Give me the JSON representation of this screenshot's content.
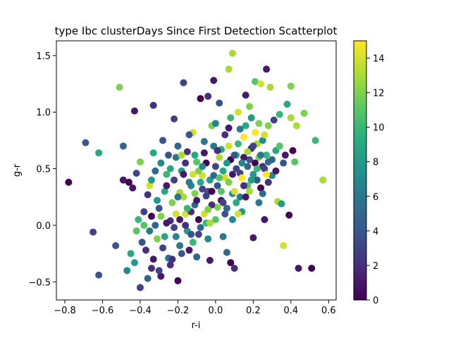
{
  "chart_data": {
    "type": "scatter",
    "title": "type Ibc clusterDays Since First Detection Scatterplot",
    "xlabel": "r-i",
    "ylabel": "g-r",
    "xlim": [
      -0.845,
      0.64
    ],
    "ylim": [
      -0.66,
      1.63
    ],
    "xticks": [
      -0.8,
      -0.6,
      -0.4,
      -0.2,
      0.0,
      0.2,
      0.4,
      0.6
    ],
    "xtick_labels": [
      "−0.8",
      "−0.6",
      "−0.4",
      "−0.2",
      "0.0",
      "0.2",
      "0.4",
      "0.6"
    ],
    "yticks": [
      -0.5,
      0.0,
      0.5,
      1.0,
      1.5
    ],
    "ytick_labels": [
      "−0.5",
      "0.0",
      "0.5",
      "1.0",
      "1.5"
    ],
    "grid": false,
    "colorbar": {
      "colormap": "viridis",
      "range": [
        0,
        15
      ],
      "ticks": [
        0,
        2,
        4,
        6,
        8,
        10,
        12,
        14
      ],
      "tick_labels": [
        "0",
        "2",
        "4",
        "6",
        "8",
        "10",
        "12",
        "14"
      ]
    },
    "points": [
      {
        "x": -0.78,
        "y": 0.38,
        "c": 0
      },
      {
        "x": -0.69,
        "y": 0.73,
        "c": 4
      },
      {
        "x": -0.65,
        "y": -0.06,
        "c": 3
      },
      {
        "x": -0.62,
        "y": 0.64,
        "c": 9
      },
      {
        "x": -0.62,
        "y": -0.44,
        "c": 4
      },
      {
        "x": -0.53,
        "y": -0.18,
        "c": 4
      },
      {
        "x": -0.51,
        "y": 1.22,
        "c": 12
      },
      {
        "x": -0.49,
        "y": 0.7,
        "c": 5
      },
      {
        "x": -0.49,
        "y": 0.4,
        "c": 1
      },
      {
        "x": -0.47,
        "y": -0.4,
        "c": 7
      },
      {
        "x": -0.46,
        "y": 0.38,
        "c": 0
      },
      {
        "x": -0.44,
        "y": 0.33,
        "c": 1
      },
      {
        "x": -0.43,
        "y": 1.01,
        "c": 1
      },
      {
        "x": -0.42,
        "y": 0.46,
        "c": 3
      },
      {
        "x": -0.4,
        "y": -0.55,
        "c": 3
      },
      {
        "x": -0.4,
        "y": 0.56,
        "c": 12
      },
      {
        "x": -0.38,
        "y": 0.12,
        "c": 3
      },
      {
        "x": -0.36,
        "y": -0.47,
        "c": 5
      },
      {
        "x": -0.35,
        "y": 0.35,
        "c": 14
      },
      {
        "x": -0.34,
        "y": -0.38,
        "c": 2
      },
      {
        "x": -0.33,
        "y": 1.06,
        "c": 2
      },
      {
        "x": -0.33,
        "y": 0.64,
        "c": 9
      },
      {
        "x": -0.31,
        "y": 0.22,
        "c": 8
      },
      {
        "x": -0.29,
        "y": -0.45,
        "c": 1
      },
      {
        "x": -0.28,
        "y": 0.75,
        "c": 4
      },
      {
        "x": -0.26,
        "y": 0.45,
        "c": 10
      },
      {
        "x": -0.25,
        "y": -0.29,
        "c": 6
      },
      {
        "x": -0.24,
        "y": 0.04,
        "c": 2
      },
      {
        "x": -0.22,
        "y": 0.94,
        "c": 3
      },
      {
        "x": -0.21,
        "y": 0.6,
        "c": 6
      },
      {
        "x": -0.2,
        "y": -0.49,
        "c": 0
      },
      {
        "x": -0.19,
        "y": 0.29,
        "c": 13
      },
      {
        "x": -0.18,
        "y": 0.48,
        "c": 8
      },
      {
        "x": -0.17,
        "y": 1.26,
        "c": 3
      },
      {
        "x": -0.16,
        "y": 0.1,
        "c": 14
      },
      {
        "x": -0.15,
        "y": 0.65,
        "c": 2
      },
      {
        "x": -0.14,
        "y": -0.22,
        "c": 1
      },
      {
        "x": -0.13,
        "y": 0.35,
        "c": 7
      },
      {
        "x": -0.12,
        "y": 0.82,
        "c": 14
      },
      {
        "x": -0.11,
        "y": 0.18,
        "c": 5
      },
      {
        "x": -0.1,
        "y": 0.56,
        "c": 11
      },
      {
        "x": -0.09,
        "y": -0.08,
        "c": 3
      },
      {
        "x": -0.08,
        "y": 1.12,
        "c": 0
      },
      {
        "x": -0.07,
        "y": 0.44,
        "c": 14
      },
      {
        "x": -0.06,
        "y": 0.74,
        "c": 6
      },
      {
        "x": -0.05,
        "y": 0.02,
        "c": 10
      },
      {
        "x": -0.04,
        "y": 1.14,
        "c": 2
      },
      {
        "x": -0.04,
        "y": 0.3,
        "c": 4
      },
      {
        "x": -0.03,
        "y": -0.31,
        "c": 1
      },
      {
        "x": -0.02,
        "y": 0.88,
        "c": 12
      },
      {
        "x": -0.01,
        "y": 1.28,
        "c": 1
      },
      {
        "x": 0.0,
        "y": 0.52,
        "c": 3
      },
      {
        "x": 0.01,
        "y": 0.16,
        "c": 12
      },
      {
        "x": 0.02,
        "y": 1.08,
        "c": 4
      },
      {
        "x": 0.03,
        "y": 0.67,
        "c": 9
      },
      {
        "x": 0.04,
        "y": -0.1,
        "c": 6
      },
      {
        "x": 0.05,
        "y": 0.42,
        "c": 14
      },
      {
        "x": 0.06,
        "y": -0.24,
        "c": 5
      },
      {
        "x": 0.07,
        "y": 1.38,
        "c": 13
      },
      {
        "x": 0.07,
        "y": 0.86,
        "c": 1
      },
      {
        "x": 0.08,
        "y": -0.33,
        "c": 0
      },
      {
        "x": 0.09,
        "y": 1.52,
        "c": 13
      },
      {
        "x": 0.09,
        "y": 0.28,
        "c": 7
      },
      {
        "x": 0.1,
        "y": -0.38,
        "c": 2
      },
      {
        "x": 0.11,
        "y": 0.62,
        "c": 10
      },
      {
        "x": 0.12,
        "y": 1.0,
        "c": 14
      },
      {
        "x": 0.13,
        "y": 0.46,
        "c": 3
      },
      {
        "x": 0.14,
        "y": 0.12,
        "c": 8
      },
      {
        "x": 0.15,
        "y": 0.78,
        "c": 15
      },
      {
        "x": 0.16,
        "y": 1.15,
        "c": 1
      },
      {
        "x": 0.17,
        "y": 0.35,
        "c": 11
      },
      {
        "x": 0.18,
        "y": 0.58,
        "c": 4
      },
      {
        "x": 0.19,
        "y": 0.95,
        "c": 8
      },
      {
        "x": 0.2,
        "y": -0.11,
        "c": 1
      },
      {
        "x": 0.21,
        "y": 1.27,
        "c": 11
      },
      {
        "x": 0.22,
        "y": 0.72,
        "c": 13
      },
      {
        "x": 0.23,
        "y": 0.2,
        "c": 6
      },
      {
        "x": 0.24,
        "y": 1.25,
        "c": 14
      },
      {
        "x": 0.25,
        "y": 0.52,
        "c": 2
      },
      {
        "x": 0.26,
        "y": 0.05,
        "c": 1
      },
      {
        "x": 0.27,
        "y": 1.38,
        "c": 1
      },
      {
        "x": 0.28,
        "y": 0.88,
        "c": 12
      },
      {
        "x": 0.29,
        "y": 1.22,
        "c": 13
      },
      {
        "x": 0.3,
        "y": 0.44,
        "c": 7
      },
      {
        "x": 0.31,
        "y": 0.93,
        "c": 3
      },
      {
        "x": 0.32,
        "y": 0.66,
        "c": 9
      },
      {
        "x": 0.33,
        "y": 0.21,
        "c": 13
      },
      {
        "x": 0.34,
        "y": 0.98,
        "c": 10
      },
      {
        "x": 0.35,
        "y": 0.19,
        "c": 8
      },
      {
        "x": 0.36,
        "y": -0.18,
        "c": 14
      },
      {
        "x": 0.37,
        "y": 0.62,
        "c": 1
      },
      {
        "x": 0.38,
        "y": 1.07,
        "c": 9
      },
      {
        "x": 0.39,
        "y": 0.09,
        "c": 0
      },
      {
        "x": 0.4,
        "y": 1.23,
        "c": 12
      },
      {
        "x": 0.4,
        "y": 0.95,
        "c": 13
      },
      {
        "x": 0.41,
        "y": 0.66,
        "c": 0
      },
      {
        "x": 0.42,
        "y": 0.56,
        "c": 11
      },
      {
        "x": 0.43,
        "y": 0.88,
        "c": 13
      },
      {
        "x": 0.44,
        "y": -0.38,
        "c": 1
      },
      {
        "x": 0.47,
        "y": 0.99,
        "c": 12
      },
      {
        "x": 0.51,
        "y": -0.38,
        "c": 0
      },
      {
        "x": 0.53,
        "y": 0.75,
        "c": 10
      },
      {
        "x": 0.57,
        "y": 0.4,
        "c": 13
      },
      {
        "x": -0.45,
        "y": -0.25,
        "c": 9
      },
      {
        "x": -0.43,
        "y": -0.33,
        "c": 8
      },
      {
        "x": -0.42,
        "y": -0.05,
        "c": 11
      },
      {
        "x": -0.41,
        "y": 0.05,
        "c": 10
      },
      {
        "x": -0.39,
        "y": -0.15,
        "c": 4
      },
      {
        "x": -0.38,
        "y": 0.0,
        "c": 11
      },
      {
        "x": -0.37,
        "y": -0.22,
        "c": 2
      },
      {
        "x": -0.36,
        "y": 0.27,
        "c": 2
      },
      {
        "x": -0.35,
        "y": -0.05,
        "c": 6
      },
      {
        "x": -0.34,
        "y": 0.08,
        "c": 0
      },
      {
        "x": -0.33,
        "y": -0.3,
        "c": 1
      },
      {
        "x": -0.32,
        "y": 0.48,
        "c": 5
      },
      {
        "x": -0.31,
        "y": -0.12,
        "c": 12
      },
      {
        "x": -0.3,
        "y": 0.15,
        "c": 4
      },
      {
        "x": -0.29,
        "y": 0.55,
        "c": 7
      },
      {
        "x": -0.28,
        "y": -0.2,
        "c": 3
      },
      {
        "x": -0.27,
        "y": 0.3,
        "c": 9
      },
      {
        "x": -0.26,
        "y": 0.02,
        "c": 1
      },
      {
        "x": -0.25,
        "y": 0.62,
        "c": 4
      },
      {
        "x": -0.24,
        "y": -0.35,
        "c": 2
      },
      {
        "x": -0.23,
        "y": 0.2,
        "c": 12
      },
      {
        "x": -0.22,
        "y": 0.4,
        "c": 3
      },
      {
        "x": -0.21,
        "y": -0.1,
        "c": 7
      },
      {
        "x": -0.2,
        "y": 0.7,
        "c": 5
      },
      {
        "x": -0.19,
        "y": 0.05,
        "c": 1
      },
      {
        "x": -0.18,
        "y": -0.25,
        "c": 4
      },
      {
        "x": -0.17,
        "y": 0.25,
        "c": 13
      },
      {
        "x": -0.16,
        "y": 0.55,
        "c": 2
      },
      {
        "x": -0.15,
        "y": -0.05,
        "c": 8
      },
      {
        "x": -0.14,
        "y": 0.38,
        "c": 6
      },
      {
        "x": -0.13,
        "y": 0.12,
        "c": 2
      },
      {
        "x": -0.12,
        "y": -0.15,
        "c": 10
      },
      {
        "x": -0.11,
        "y": 0.62,
        "c": 9
      },
      {
        "x": -0.1,
        "y": 0.22,
        "c": 1
      },
      {
        "x": -0.09,
        "y": 0.48,
        "c": 12
      },
      {
        "x": -0.08,
        "y": -0.02,
        "c": 5
      },
      {
        "x": -0.07,
        "y": 0.32,
        "c": 3
      },
      {
        "x": -0.06,
        "y": 0.1,
        "c": 14
      },
      {
        "x": -0.05,
        "y": 0.55,
        "c": 0
      },
      {
        "x": -0.04,
        "y": -0.12,
        "c": 7
      },
      {
        "x": -0.03,
        "y": 0.4,
        "c": 8
      },
      {
        "x": -0.02,
        "y": 0.18,
        "c": 2
      },
      {
        "x": -0.01,
        "y": 0.7,
        "c": 6
      },
      {
        "x": 0.0,
        "y": 0.05,
        "c": 11
      },
      {
        "x": 0.01,
        "y": 0.35,
        "c": 4
      },
      {
        "x": 0.02,
        "y": 0.6,
        "c": 13
      },
      {
        "x": 0.03,
        "y": 0.22,
        "c": 1
      },
      {
        "x": 0.04,
        "y": 0.48,
        "c": 9
      },
      {
        "x": 0.05,
        "y": 0.8,
        "c": 2
      },
      {
        "x": 0.06,
        "y": 0.15,
        "c": 5
      },
      {
        "x": 0.07,
        "y": 0.38,
        "c": 12
      },
      {
        "x": 0.08,
        "y": 0.58,
        "c": 0
      },
      {
        "x": 0.09,
        "y": 0.05,
        "c": 7
      },
      {
        "x": 0.1,
        "y": 0.3,
        "c": 14
      },
      {
        "x": 0.11,
        "y": 0.5,
        "c": 3
      },
      {
        "x": 0.12,
        "y": 0.72,
        "c": 10
      },
      {
        "x": 0.13,
        "y": 0.25,
        "c": 6
      },
      {
        "x": 0.14,
        "y": 0.42,
        "c": 15
      },
      {
        "x": 0.15,
        "y": 0.6,
        "c": 1
      },
      {
        "x": 0.16,
        "y": 0.88,
        "c": 9
      },
      {
        "x": 0.17,
        "y": 0.52,
        "c": 5
      },
      {
        "x": 0.18,
        "y": 0.3,
        "c": 13
      },
      {
        "x": 0.19,
        "y": 0.68,
        "c": 2
      },
      {
        "x": 0.2,
        "y": 0.45,
        "c": 8
      },
      {
        "x": 0.21,
        "y": 0.82,
        "c": 15
      },
      {
        "x": 0.22,
        "y": 0.4,
        "c": 4
      },
      {
        "x": 0.23,
        "y": 0.6,
        "c": 12
      },
      {
        "x": 0.24,
        "y": 0.33,
        "c": 0
      },
      {
        "x": 0.25,
        "y": 0.75,
        "c": 7
      },
      {
        "x": 0.26,
        "y": 0.5,
        "c": 3
      },
      {
        "x": 0.27,
        "y": 0.62,
        "c": 10
      },
      {
        "x": 0.28,
        "y": 0.38,
        "c": 2
      },
      {
        "x": 0.3,
        "y": 0.58,
        "c": 5
      },
      {
        "x": 0.32,
        "y": 0.48,
        "c": 1
      },
      {
        "x": 0.34,
        "y": 0.7,
        "c": 11
      },
      {
        "x": 0.36,
        "y": 0.55,
        "c": 4
      },
      {
        "x": -0.3,
        "y": -0.4,
        "c": 3
      },
      {
        "x": -0.27,
        "y": -0.1,
        "c": 9
      },
      {
        "x": -0.23,
        "y": -0.3,
        "c": 2
      },
      {
        "x": -0.21,
        "y": 0.1,
        "c": 14
      },
      {
        "x": -0.19,
        "y": -0.18,
        "c": 6
      },
      {
        "x": -0.17,
        "y": 0.45,
        "c": 1
      },
      {
        "x": -0.15,
        "y": 0.15,
        "c": 10
      },
      {
        "x": -0.13,
        "y": -0.08,
        "c": 4
      },
      {
        "x": -0.11,
        "y": 0.28,
        "c": 12
      },
      {
        "x": -0.09,
        "y": 0.05,
        "c": 0
      },
      {
        "x": -0.07,
        "y": 0.52,
        "c": 7
      },
      {
        "x": -0.05,
        "y": 0.26,
        "c": 3
      },
      {
        "x": -0.03,
        "y": 0.02,
        "c": 13
      },
      {
        "x": -0.01,
        "y": 0.44,
        "c": 5
      },
      {
        "x": 0.01,
        "y": 0.66,
        "c": 2
      },
      {
        "x": 0.03,
        "y": 0.3,
        "c": 11
      },
      {
        "x": 0.05,
        "y": 0.1,
        "c": 4
      },
      {
        "x": 0.07,
        "y": 0.7,
        "c": 14
      },
      {
        "x": 0.09,
        "y": 0.45,
        "c": 1
      },
      {
        "x": 0.11,
        "y": 0.2,
        "c": 9
      },
      {
        "x": 0.13,
        "y": 0.85,
        "c": 6
      },
      {
        "x": 0.15,
        "y": 0.35,
        "c": 2
      },
      {
        "x": 0.17,
        "y": 0.65,
        "c": 13
      },
      {
        "x": 0.19,
        "y": 0.4,
        "c": 8
      },
      {
        "x": 0.21,
        "y": 0.55,
        "c": 0
      },
      {
        "x": 0.23,
        "y": 0.9,
        "c": 12
      },
      {
        "x": 0.25,
        "y": 0.28,
        "c": 5
      },
      {
        "x": 0.27,
        "y": 0.45,
        "c": 15
      },
      {
        "x": -0.34,
        "y": 0.4,
        "c": 8
      },
      {
        "x": -0.32,
        "y": 0.0,
        "c": 5
      },
      {
        "x": -0.29,
        "y": 0.08,
        "c": 12
      },
      {
        "x": -0.26,
        "y": 0.35,
        "c": 1
      },
      {
        "x": -0.24,
        "y": 0.5,
        "c": 9
      },
      {
        "x": -0.22,
        "y": -0.02,
        "c": 3
      },
      {
        "x": -0.2,
        "y": 0.25,
        "c": 6
      },
      {
        "x": -0.18,
        "y": 0.62,
        "c": 13
      },
      {
        "x": -0.16,
        "y": 0.0,
        "c": 2
      },
      {
        "x": -0.14,
        "y": 0.8,
        "c": 4
      },
      {
        "x": -0.12,
        "y": 0.45,
        "c": 14
      },
      {
        "x": -0.1,
        "y": -0.28,
        "c": 5
      },
      {
        "x": -0.08,
        "y": 0.38,
        "c": 9
      },
      {
        "x": -0.06,
        "y": 0.64,
        "c": 1
      },
      {
        "x": -0.04,
        "y": 0.14,
        "c": 12
      },
      {
        "x": -0.02,
        "y": 0.3,
        "c": 0
      },
      {
        "x": 0.0,
        "y": 0.9,
        "c": 7
      },
      {
        "x": 0.02,
        "y": 0.42,
        "c": 11
      },
      {
        "x": 0.04,
        "y": 0.2,
        "c": 3
      },
      {
        "x": 0.06,
        "y": 0.55,
        "c": 8
      },
      {
        "x": 0.08,
        "y": 0.95,
        "c": 10
      },
      {
        "x": 0.1,
        "y": 0.62,
        "c": 4
      },
      {
        "x": 0.12,
        "y": 0.1,
        "c": 14
      },
      {
        "x": 0.14,
        "y": 0.55,
        "c": 7
      },
      {
        "x": 0.16,
        "y": 0.25,
        "c": 1
      },
      {
        "x": 0.18,
        "y": 1.05,
        "c": 12
      },
      {
        "x": 0.2,
        "y": 0.7,
        "c": 3
      },
      {
        "x": 0.22,
        "y": 0.5,
        "c": 10
      },
      {
        "x": 0.24,
        "y": 0.62,
        "c": 6
      },
      {
        "x": 0.26,
        "y": 0.8,
        "c": 14
      },
      {
        "x": 0.28,
        "y": 0.56,
        "c": 5
      }
    ]
  }
}
